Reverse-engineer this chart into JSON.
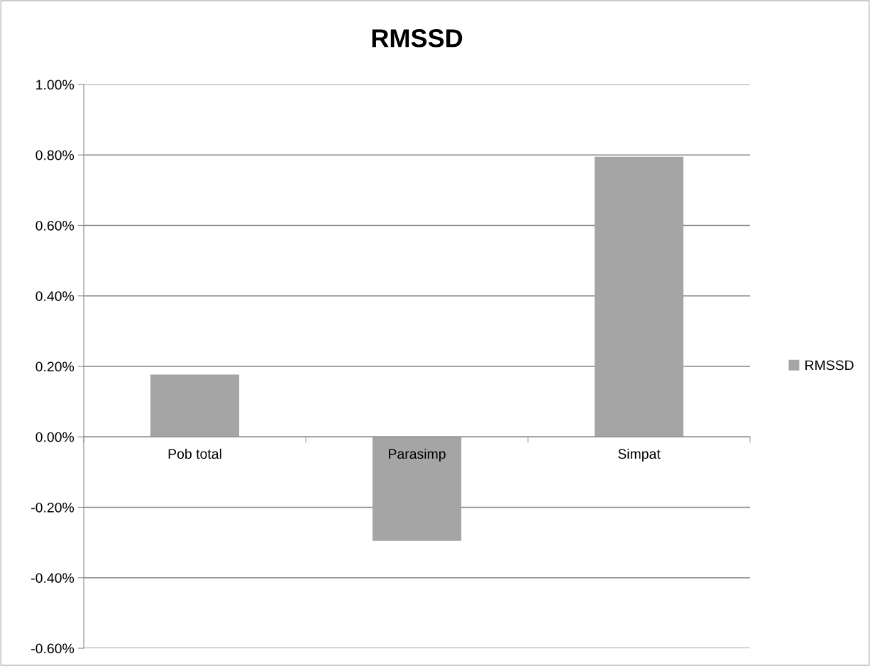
{
  "chart_data": {
    "type": "bar",
    "title": "RMSSD",
    "categories": [
      "Pob total",
      "Parasimp",
      "Simpat"
    ],
    "series": [
      {
        "name": "RMSSD",
        "color": "#a5a5a5",
        "values": [
          0.177,
          -0.295,
          0.795
        ]
      }
    ],
    "ylim": [
      -0.6,
      1.0
    ],
    "yticks": [
      {
        "value": -0.6,
        "label": "-0.60%"
      },
      {
        "value": -0.4,
        "label": "-0.40%"
      },
      {
        "value": -0.2,
        "label": "-0.20%"
      },
      {
        "value": 0,
        "label": "0.00%"
      },
      {
        "value": 0.2,
        "label": "0.20%"
      },
      {
        "value": 0.4,
        "label": "0.40%"
      },
      {
        "value": 0.6,
        "label": "0.60%"
      },
      {
        "value": 0.8,
        "label": "0.80%"
      },
      {
        "value": 1.0,
        "label": "1.00%"
      }
    ],
    "grid": "y",
    "legend": "right"
  }
}
